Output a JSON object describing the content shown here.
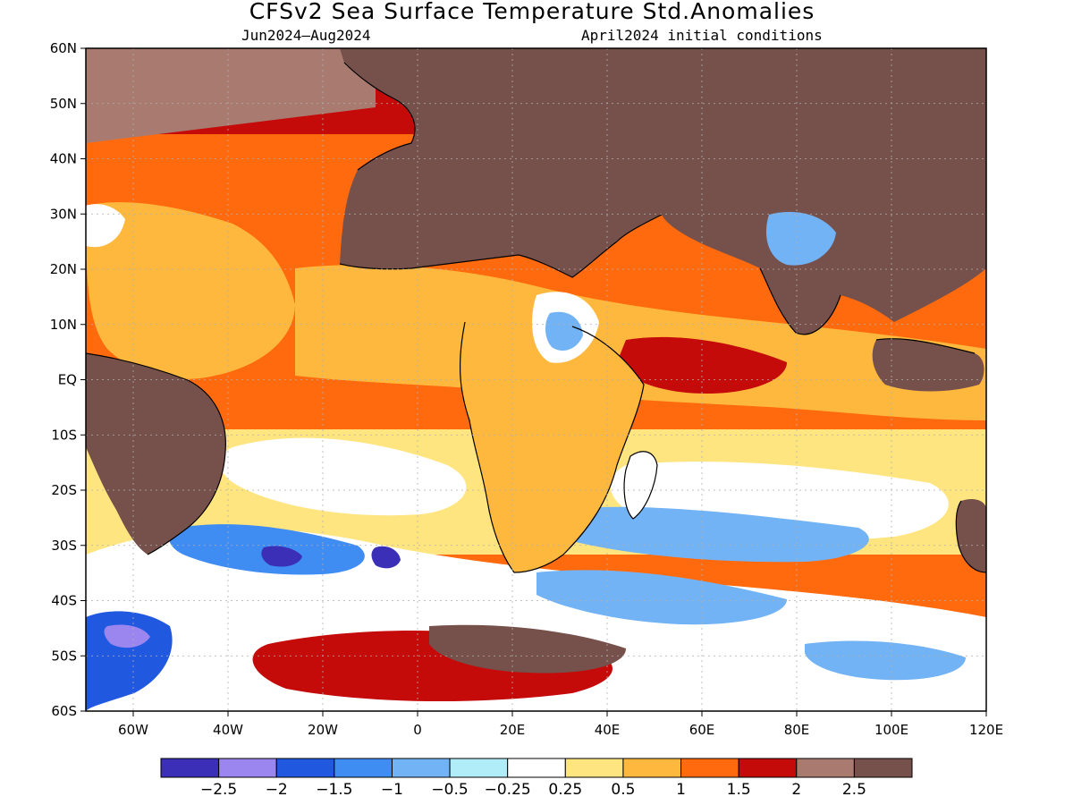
{
  "title": "CFSv2 Sea Surface Temperature Std.Anomalies",
  "subtitle_left": "Jun2024–Aug2024",
  "subtitle_right": "April2024 initial conditions",
  "map": {
    "lon_range": [
      -70,
      120
    ],
    "lat_range": [
      -60,
      60
    ],
    "lat_ticks": [
      "60N",
      "50N",
      "40N",
      "30N",
      "20N",
      "10N",
      "EQ",
      "10S",
      "20S",
      "30S",
      "40S",
      "50S",
      "60S"
    ],
    "lon_ticks": [
      "60W",
      "40W",
      "20W",
      "0",
      "20E",
      "40E",
      "60E",
      "80E",
      "100E",
      "120E"
    ],
    "land_color": "#76504a"
  },
  "colorbar": {
    "colors": [
      "#3a2fb6",
      "#9b86f0",
      "#2058e0",
      "#3f8cf2",
      "#72b3f5",
      "#b1edf8",
      "#ffffff",
      "#ffe580",
      "#ffb83e",
      "#ff6a0e",
      "#c50a0a",
      "#a87a70",
      "#76504a"
    ],
    "labels": [
      "−2.5",
      "−2",
      "−1.5",
      "−1",
      "−0.5",
      "−0.25",
      "0.25",
      "0.5",
      "1",
      "1.5",
      "2",
      "2.5"
    ]
  }
}
